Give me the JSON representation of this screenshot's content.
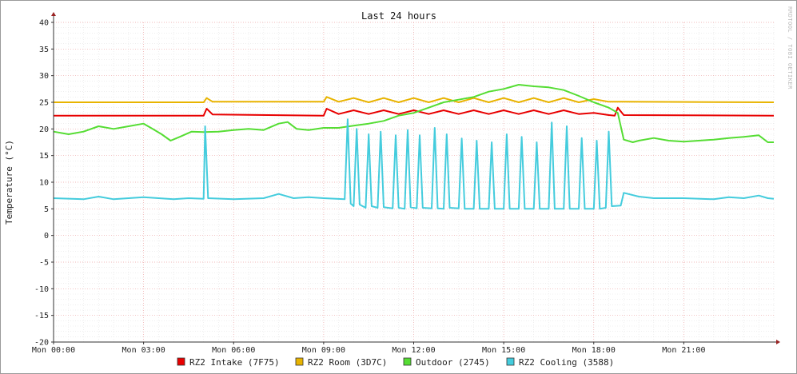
{
  "chart_data": {
    "type": "line",
    "title": "Last 24 hours",
    "ylabel": "Temperature (°C)",
    "watermark": "RRDTOOL / TOBI OETIKER",
    "xlim": [
      0,
      24
    ],
    "ylim": [
      -20,
      40
    ],
    "x_ticks": [
      {
        "value": 0,
        "label": "Mon 00:00"
      },
      {
        "value": 3,
        "label": "Mon 03:00"
      },
      {
        "value": 6,
        "label": "Mon 06:00"
      },
      {
        "value": 9,
        "label": "Mon 09:00"
      },
      {
        "value": 12,
        "label": "Mon 12:00"
      },
      {
        "value": 15,
        "label": "Mon 15:00"
      },
      {
        "value": 18,
        "label": "Mon 18:00"
      },
      {
        "value": 21,
        "label": "Mon 21:00"
      }
    ],
    "y_ticks": [
      -20,
      -15,
      -10,
      -5,
      0,
      5,
      10,
      15,
      20,
      25,
      30,
      35,
      40
    ],
    "grid": true,
    "legend_position": "bottom",
    "series": [
      {
        "name": "RZ2 Intake (7F75)",
        "color": "#e80000",
        "points": [
          [
            0,
            22.5
          ],
          [
            5,
            22.5
          ],
          [
            5.1,
            23.8
          ],
          [
            5.3,
            22.7
          ],
          [
            9,
            22.5
          ],
          [
            9.1,
            23.8
          ],
          [
            9.5,
            22.8
          ],
          [
            10,
            23.5
          ],
          [
            10.5,
            22.8
          ],
          [
            11,
            23.5
          ],
          [
            11.5,
            22.8
          ],
          [
            12,
            23.5
          ],
          [
            12.5,
            22.8
          ],
          [
            13,
            23.5
          ],
          [
            13.5,
            22.8
          ],
          [
            14,
            23.5
          ],
          [
            14.5,
            22.8
          ],
          [
            15,
            23.5
          ],
          [
            15.5,
            22.8
          ],
          [
            16,
            23.5
          ],
          [
            16.5,
            22.8
          ],
          [
            17,
            23.5
          ],
          [
            17.5,
            22.8
          ],
          [
            18,
            23
          ],
          [
            18.5,
            22.6
          ],
          [
            18.7,
            22.5
          ],
          [
            18.8,
            24
          ],
          [
            19,
            22.6
          ],
          [
            24,
            22.5
          ]
        ]
      },
      {
        "name": "RZ2 Room (3D7C)",
        "color": "#e8b400",
        "points": [
          [
            0,
            25
          ],
          [
            5,
            25
          ],
          [
            5.1,
            25.8
          ],
          [
            5.3,
            25.1
          ],
          [
            9,
            25.1
          ],
          [
            9.1,
            26
          ],
          [
            9.5,
            25.1
          ],
          [
            10,
            25.8
          ],
          [
            10.5,
            25
          ],
          [
            11,
            25.8
          ],
          [
            11.5,
            25
          ],
          [
            12,
            25.8
          ],
          [
            12.5,
            25
          ],
          [
            13,
            25.8
          ],
          [
            13.5,
            25
          ],
          [
            14,
            25.8
          ],
          [
            14.5,
            25
          ],
          [
            15,
            25.8
          ],
          [
            15.5,
            25
          ],
          [
            16,
            25.8
          ],
          [
            16.5,
            25
          ],
          [
            17,
            25.8
          ],
          [
            17.5,
            25
          ],
          [
            18,
            25.6
          ],
          [
            18.5,
            25.1
          ],
          [
            19,
            25.1
          ],
          [
            24,
            25
          ]
        ]
      },
      {
        "name": "Outdoor (2745)",
        "color": "#55dd33",
        "points": [
          [
            0,
            19.5
          ],
          [
            0.5,
            19
          ],
          [
            1,
            19.5
          ],
          [
            1.5,
            20.5
          ],
          [
            2,
            20
          ],
          [
            2.5,
            20.5
          ],
          [
            3,
            21
          ],
          [
            3.3,
            20
          ],
          [
            3.6,
            19
          ],
          [
            3.9,
            17.8
          ],
          [
            4.2,
            18.5
          ],
          [
            4.6,
            19.5
          ],
          [
            5,
            19.4
          ],
          [
            5.5,
            19.5
          ],
          [
            6,
            19.8
          ],
          [
            6.5,
            20
          ],
          [
            7,
            19.8
          ],
          [
            7.5,
            21
          ],
          [
            7.8,
            21.3
          ],
          [
            8.1,
            20
          ],
          [
            8.5,
            19.8
          ],
          [
            9,
            20.2
          ],
          [
            9.5,
            20.2
          ],
          [
            10,
            20.6
          ],
          [
            10.5,
            21
          ],
          [
            11,
            21.5
          ],
          [
            11.5,
            22.5
          ],
          [
            12,
            23
          ],
          [
            12.5,
            24
          ],
          [
            13,
            25
          ],
          [
            13.5,
            25.5
          ],
          [
            14,
            26
          ],
          [
            14.5,
            27
          ],
          [
            15,
            27.5
          ],
          [
            15.5,
            28.3
          ],
          [
            16,
            28
          ],
          [
            16.5,
            27.8
          ],
          [
            17,
            27.3
          ],
          [
            17.5,
            26.2
          ],
          [
            18,
            25
          ],
          [
            18.5,
            24
          ],
          [
            18.8,
            23
          ],
          [
            19,
            18
          ],
          [
            19.3,
            17.5
          ],
          [
            19.5,
            17.8
          ],
          [
            20,
            18.3
          ],
          [
            20.5,
            17.8
          ],
          [
            21,
            17.6
          ],
          [
            21.5,
            17.8
          ],
          [
            22,
            18
          ],
          [
            22.5,
            18.3
          ],
          [
            23,
            18.5
          ],
          [
            23.5,
            18.8
          ],
          [
            23.8,
            17.5
          ],
          [
            24,
            17.5
          ]
        ]
      },
      {
        "name": "RZ2 Cooling (3588)",
        "color": "#44ccdd",
        "points": [
          [
            0,
            7
          ],
          [
            1,
            6.8
          ],
          [
            1.5,
            7.3
          ],
          [
            2,
            6.8
          ],
          [
            3,
            7.2
          ],
          [
            4,
            6.8
          ],
          [
            4.5,
            7
          ],
          [
            5,
            6.9
          ],
          [
            5.05,
            20.5
          ],
          [
            5.15,
            7
          ],
          [
            6,
            6.8
          ],
          [
            7,
            7
          ],
          [
            7.5,
            7.8
          ],
          [
            8,
            7
          ],
          [
            8.5,
            7.2
          ],
          [
            9,
            7
          ],
          [
            9.7,
            6.8
          ],
          [
            9.8,
            21.8
          ],
          [
            9.9,
            6
          ],
          [
            10,
            5.5
          ],
          [
            10.1,
            20
          ],
          [
            10.2,
            5.8
          ],
          [
            10.4,
            5.2
          ],
          [
            10.5,
            19
          ],
          [
            10.6,
            5.5
          ],
          [
            10.8,
            5.2
          ],
          [
            10.9,
            19.5
          ],
          [
            11,
            5.3
          ],
          [
            11.3,
            5.1
          ],
          [
            11.4,
            18.8
          ],
          [
            11.5,
            5.2
          ],
          [
            11.7,
            5
          ],
          [
            11.8,
            19.8
          ],
          [
            11.9,
            5.3
          ],
          [
            12.1,
            5.1
          ],
          [
            12.2,
            18.8
          ],
          [
            12.3,
            5.2
          ],
          [
            12.6,
            5.1
          ],
          [
            12.7,
            20.2
          ],
          [
            12.8,
            5.1
          ],
          [
            13,
            5
          ],
          [
            13.1,
            19
          ],
          [
            13.2,
            5.2
          ],
          [
            13.5,
            5.1
          ],
          [
            13.6,
            18.2
          ],
          [
            13.7,
            5
          ],
          [
            14,
            5
          ],
          [
            14.1,
            17.8
          ],
          [
            14.2,
            5
          ],
          [
            14.5,
            5
          ],
          [
            14.6,
            17.5
          ],
          [
            14.7,
            5
          ],
          [
            15,
            5
          ],
          [
            15.1,
            19
          ],
          [
            15.2,
            5
          ],
          [
            15.5,
            5
          ],
          [
            15.6,
            18.5
          ],
          [
            15.7,
            5
          ],
          [
            16,
            5
          ],
          [
            16.1,
            17.5
          ],
          [
            16.2,
            5
          ],
          [
            16.5,
            5
          ],
          [
            16.6,
            21.2
          ],
          [
            16.7,
            5
          ],
          [
            17,
            5
          ],
          [
            17.1,
            20.5
          ],
          [
            17.2,
            5
          ],
          [
            17.5,
            5
          ],
          [
            17.6,
            18.3
          ],
          [
            17.7,
            5
          ],
          [
            18,
            5
          ],
          [
            18.1,
            17.8
          ],
          [
            18.2,
            5
          ],
          [
            18.4,
            5.2
          ],
          [
            18.5,
            19.5
          ],
          [
            18.6,
            5.5
          ],
          [
            18.9,
            5.6
          ],
          [
            19,
            8
          ],
          [
            19.5,
            7.3
          ],
          [
            20,
            7
          ],
          [
            21,
            7
          ],
          [
            22,
            6.8
          ],
          [
            22.5,
            7.2
          ],
          [
            23,
            7
          ],
          [
            23.5,
            7.5
          ],
          [
            23.8,
            7
          ],
          [
            24,
            6.9
          ]
        ]
      }
    ]
  }
}
